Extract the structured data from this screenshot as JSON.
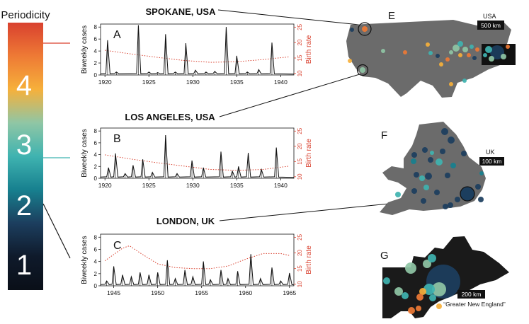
{
  "colorbar": {
    "title": "Periodicity",
    "labels": [
      "4",
      "3",
      "2",
      "1"
    ],
    "gradient": [
      "#d9412f",
      "#ee7a35",
      "#f6b03b",
      "#8fc6a5",
      "#3fb3b0",
      "#17808f",
      "#1c3e5e",
      "#0f1a2b",
      "#0a0f18"
    ]
  },
  "city_labels": {
    "spokane": "SPOKANE, USA",
    "los_angeles": "LOS ANGELES, USA",
    "london": "LONDON, UK"
  },
  "maps": {
    "E": {
      "letter": "E",
      "region_label": "USA",
      "scale_label": "500 km"
    },
    "F": {
      "letter": "F",
      "region_label": "UK",
      "scale_label": "100 km"
    },
    "G": {
      "letter": "G",
      "scale_label": "200 km",
      "caption": "“Greater New England”"
    }
  },
  "colors": {
    "cases_line": "#111111",
    "birth_rate_line": "#d9412f",
    "land": "#6b6b6b",
    "land_dark": "#1a1a1a"
  },
  "chart_data": [
    {
      "type": "line",
      "panel": "A",
      "ylabel": "Biweekly cases",
      "y2label": "Birth rate",
      "xlim": [
        1919.5,
        1941.5
      ],
      "ylim": [
        0,
        8.5
      ],
      "y2lim": [
        9.5,
        26
      ],
      "xticks": [
        1920,
        1925,
        1930,
        1935,
        1940
      ],
      "yticks": [
        0,
        2,
        4,
        6,
        8
      ],
      "y2ticks": [
        10,
        15,
        20,
        25
      ],
      "epidemic_peaks": [
        {
          "x": 1920.3,
          "y": 5.8
        },
        {
          "x": 1921.3,
          "y": 0.5
        },
        {
          "x": 1923.8,
          "y": 8.3
        },
        {
          "x": 1925.0,
          "y": 0.5
        },
        {
          "x": 1926.0,
          "y": 0.4
        },
        {
          "x": 1926.9,
          "y": 6.8
        },
        {
          "x": 1928.0,
          "y": 0.5
        },
        {
          "x": 1929.2,
          "y": 5.3
        },
        {
          "x": 1930.3,
          "y": 0.8
        },
        {
          "x": 1931.5,
          "y": 0.5
        },
        {
          "x": 1932.5,
          "y": 0.6
        },
        {
          "x": 1933.8,
          "y": 8.0
        },
        {
          "x": 1935.0,
          "y": 3.2
        },
        {
          "x": 1936.2,
          "y": 0.5
        },
        {
          "x": 1937.5,
          "y": 0.9
        },
        {
          "x": 1939.0,
          "y": 5.4
        }
      ],
      "birth_rate": {
        "x": [
          1920,
          1923,
          1926,
          1929,
          1932,
          1935,
          1938,
          1941
        ],
        "y": [
          17.5,
          16.3,
          15.2,
          14.2,
          13.6,
          13.8,
          14.5,
          15.4
        ]
      }
    },
    {
      "type": "line",
      "panel": "B",
      "ylabel": "Biweekly cases",
      "y2label": "Birth rate",
      "xlim": [
        1919.5,
        1941.5
      ],
      "ylim": [
        0,
        8.5
      ],
      "y2lim": [
        9.5,
        26
      ],
      "xticks": [
        1920,
        1925,
        1930,
        1935,
        1940
      ],
      "yticks": [
        0,
        2,
        4,
        6,
        8
      ],
      "y2ticks": [
        10,
        15,
        20,
        25
      ],
      "epidemic_peaks": [
        {
          "x": 1920.4,
          "y": 1.8
        },
        {
          "x": 1921.2,
          "y": 4.2
        },
        {
          "x": 1922.3,
          "y": 0.8
        },
        {
          "x": 1923.2,
          "y": 2.2
        },
        {
          "x": 1924.3,
          "y": 3.2
        },
        {
          "x": 1925.4,
          "y": 1.0
        },
        {
          "x": 1926.9,
          "y": 7.3
        },
        {
          "x": 1928.2,
          "y": 0.8
        },
        {
          "x": 1929.9,
          "y": 3.0
        },
        {
          "x": 1931.2,
          "y": 1.8
        },
        {
          "x": 1933.2,
          "y": 4.5
        },
        {
          "x": 1934.5,
          "y": 1.2
        },
        {
          "x": 1935.2,
          "y": 2.0
        },
        {
          "x": 1936.3,
          "y": 4.3
        },
        {
          "x": 1937.8,
          "y": 1.5
        },
        {
          "x": 1939.5,
          "y": 5.2
        }
      ],
      "birth_rate": {
        "x": [
          1920,
          1923,
          1926,
          1929,
          1932,
          1935,
          1938,
          1941
        ],
        "y": [
          17.2,
          15.8,
          14.6,
          13.5,
          12.4,
          12.1,
          12.4,
          13.5
        ]
      }
    },
    {
      "type": "line",
      "panel": "C",
      "ylabel": "Biweekly cases",
      "y2label": "Birth rate",
      "xlim": [
        1943.5,
        1965.5
      ],
      "ylim": [
        0,
        8.5
      ],
      "y2lim": [
        9.5,
        26
      ],
      "xticks": [
        1945,
        1950,
        1955,
        1960,
        1965
      ],
      "yticks": [
        0,
        2,
        4,
        6,
        8
      ],
      "y2ticks": [
        10,
        15,
        20,
        25
      ],
      "epidemic_peaks": [
        {
          "x": 1944.2,
          "y": 0.8
        },
        {
          "x": 1945.0,
          "y": 3.2
        },
        {
          "x": 1946.0,
          "y": 1.8
        },
        {
          "x": 1947.0,
          "y": 1.5
        },
        {
          "x": 1948.0,
          "y": 2.2
        },
        {
          "x": 1949.0,
          "y": 1.8
        },
        {
          "x": 1950.0,
          "y": 2.2
        },
        {
          "x": 1951.1,
          "y": 4.2
        },
        {
          "x": 1952.0,
          "y": 1.2
        },
        {
          "x": 1953.1,
          "y": 2.6
        },
        {
          "x": 1954.0,
          "y": 1.5
        },
        {
          "x": 1955.2,
          "y": 4.0
        },
        {
          "x": 1956.0,
          "y": 1.0
        },
        {
          "x": 1957.2,
          "y": 2.6
        },
        {
          "x": 1958.0,
          "y": 1.2
        },
        {
          "x": 1959.1,
          "y": 2.4
        },
        {
          "x": 1960.6,
          "y": 5.2
        },
        {
          "x": 1961.7,
          "y": 1.2
        },
        {
          "x": 1963.0,
          "y": 3.0
        },
        {
          "x": 1964.0,
          "y": 0.8
        },
        {
          "x": 1965.0,
          "y": 2.1
        }
      ],
      "birth_rate": {
        "x": [
          1944,
          1945,
          1946,
          1946.8,
          1948,
          1950,
          1952,
          1954,
          1956,
          1958,
          1960,
          1962,
          1964,
          1965
        ],
        "y": [
          17.5,
          19.5,
          21.5,
          22.3,
          20.0,
          16.5,
          15.3,
          15.0,
          15.0,
          15.8,
          18.0,
          19.8,
          19.8,
          19.2
        ]
      }
    }
  ]
}
